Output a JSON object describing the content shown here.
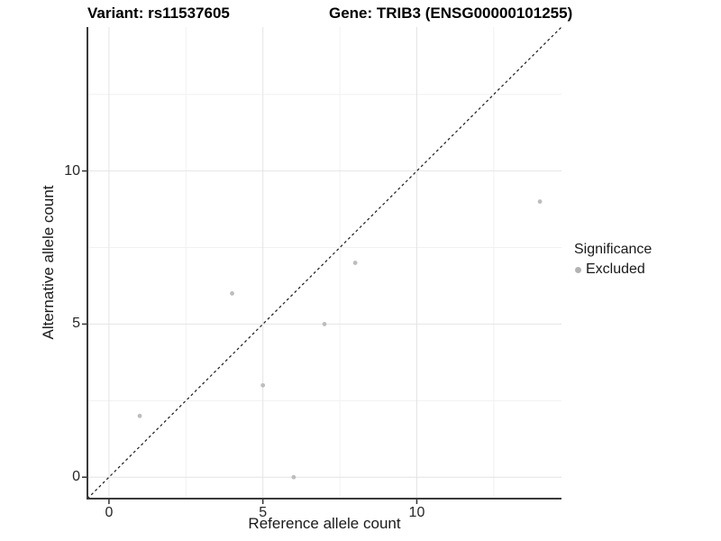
{
  "titles": {
    "variant": "Variant: rs11537605",
    "gene": "Gene: TRIB3 (ENSG00000101255)"
  },
  "axes": {
    "x": {
      "label": "Reference allele count",
      "ticks": [
        0,
        5,
        10
      ],
      "minor_ticks": [
        2.5,
        7.5,
        12.5
      ]
    },
    "y": {
      "label": "Alternative allele count",
      "ticks": [
        0,
        5,
        10
      ],
      "minor_ticks": [
        2.5,
        7.5,
        12.5
      ]
    }
  },
  "legend": {
    "title": "Significance",
    "items": [
      {
        "label": "Excluded",
        "color": "#b3b3b3"
      }
    ]
  },
  "chart_data": {
    "type": "scatter",
    "title": "Variant: rs11537605 | Gene: TRIB3 (ENSG00000101255)",
    "xlabel": "Reference allele count",
    "ylabel": "Alternative allele count",
    "xlim": [
      0,
      14
    ],
    "ylim": [
      0,
      14
    ],
    "x_ticks": [
      0,
      5,
      10
    ],
    "y_ticks": [
      0,
      5,
      10
    ],
    "grid": "major-and-minor",
    "legend_position": "right-center",
    "series": [
      {
        "name": "Excluded",
        "color": "#bdbdbd",
        "marker": "circle",
        "points": [
          [
            1,
            2
          ],
          [
            4,
            6
          ],
          [
            5,
            3
          ],
          [
            6,
            0
          ],
          [
            7,
            5
          ],
          [
            8,
            7
          ],
          [
            14,
            9
          ]
        ]
      }
    ],
    "reference_line": {
      "type": "identity y=x",
      "style": "dashed",
      "color": "#1a1a1a"
    }
  },
  "style": {
    "background": "#ffffff",
    "grid_major_color": "#e4e4e4",
    "grid_minor_color": "#f1f1f1",
    "axis_line_color": "#3a3a3a",
    "tick_mark_color": "#333333",
    "point_color": "#bdbdbd"
  }
}
